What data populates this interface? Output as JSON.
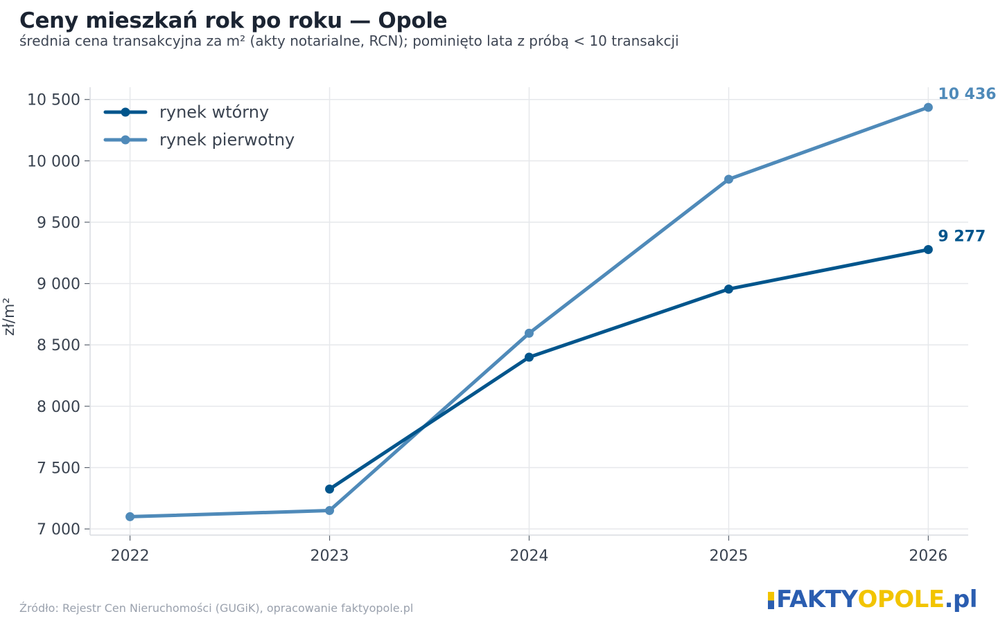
{
  "title": "Ceny mieszkań rok po roku — Opole",
  "subtitle": "średnia cena transakcyjna za m² (akty notarialne, RCN); pominięto lata z próbą < 10 transakcji",
  "source": "Źródło: Rejestr Cen Nieruchomości (GUGiK), opracowanie faktyopole.pl",
  "brand": {
    "part1": "FAKTY",
    "part2": "OPOLE",
    "part3": ".pl"
  },
  "chart_data": {
    "type": "line",
    "title": "Ceny mieszkań rok po roku — Opole",
    "subtitle": "średnia cena transakcyjna za m² (akty notarialne, RCN); pominięto lata z próbą < 10 transakcji",
    "xlabel": "",
    "ylabel": "zł/m²",
    "x": [
      2022,
      2023,
      2024,
      2025,
      2026
    ],
    "x_tick_labels": [
      "2022",
      "2023",
      "2024",
      "2025",
      "2026"
    ],
    "y_ticks": [
      7000,
      7500,
      8000,
      8500,
      9000,
      9500,
      10000,
      10500
    ],
    "y_tick_labels": [
      "7 000",
      "7 500",
      "8 000",
      "8 500",
      "9 000",
      "9 500",
      "10 000",
      "10 500"
    ],
    "ylim": [
      6950,
      10600
    ],
    "xlim": [
      2021.8,
      2026.2
    ],
    "grid": true,
    "legend_position": "top-left",
    "series": [
      {
        "name": "rynek wtórny",
        "color": "#00558c",
        "values": [
          null,
          7325,
          8400,
          8955,
          9277
        ],
        "end_label": "9 277"
      },
      {
        "name": "rynek pierwotny",
        "color": "#4f8ab9",
        "values": [
          7100,
          7150,
          8595,
          9850,
          10436
        ],
        "end_label": "10 436"
      }
    ]
  }
}
